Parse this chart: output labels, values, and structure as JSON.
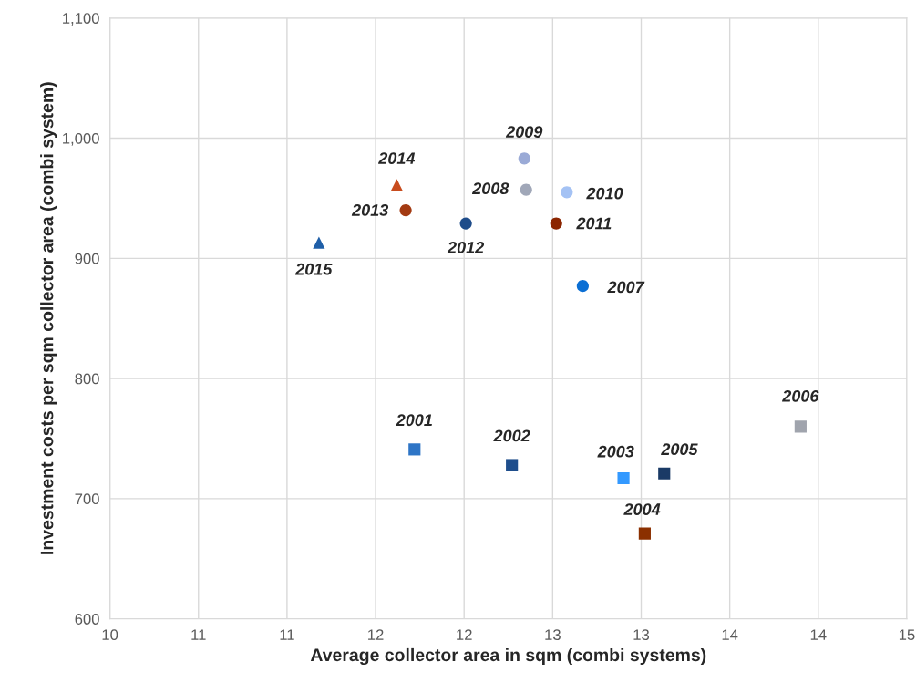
{
  "chart_data": {
    "type": "scatter",
    "xlabel": "Average collector area in sqm (combi systems)",
    "ylabel": "Investment costs per sqm collector area (combi system)",
    "xlim": [
      10,
      14.5
    ],
    "xticks": [
      10,
      {
        "value": 10.5,
        "label": "11"
      },
      11,
      {
        "value": 11.5,
        "label": "12"
      },
      12,
      {
        "value": 12.5,
        "label": "13"
      },
      13,
      {
        "value": 13.5,
        "label": "14"
      },
      14,
      {
        "value": 14.5,
        "label": "15"
      }
    ],
    "ylim": [
      600,
      1100
    ],
    "yticks": [
      600,
      700,
      800,
      900,
      {
        "value": 1000,
        "label": "1,000"
      },
      {
        "value": 1100,
        "label": "1,100"
      }
    ],
    "grid": true,
    "series": [
      {
        "name": "2001",
        "color": "#2e75c6",
        "marker": "square",
        "x": [
          11.72
        ],
        "values": [
          741
        ]
      },
      {
        "name": "2002",
        "color": "#1f4e8c",
        "marker": "square",
        "x": [
          12.27
        ],
        "values": [
          728
        ]
      },
      {
        "name": "2003",
        "color": "#3399ff",
        "marker": "square",
        "x": [
          12.9
        ],
        "values": [
          717
        ]
      },
      {
        "name": "2004",
        "color": "#8b3000",
        "marker": "square",
        "x": [
          13.02
        ],
        "values": [
          671
        ]
      },
      {
        "name": "2005",
        "color": "#1a3a66",
        "marker": "square",
        "x": [
          13.13
        ],
        "values": [
          721
        ]
      },
      {
        "name": "2006",
        "color": "#a0a4ad",
        "marker": "square",
        "x": [
          13.9
        ],
        "values": [
          760
        ]
      },
      {
        "name": "2007",
        "color": "#0b6fd4",
        "marker": "circle",
        "x": [
          12.67
        ],
        "values": [
          877
        ]
      },
      {
        "name": "2008",
        "color": "#a0a7b8",
        "marker": "circle",
        "x": [
          12.35
        ],
        "values": [
          957
        ]
      },
      {
        "name": "2009",
        "color": "#9aaad6",
        "marker": "circle",
        "x": [
          12.34
        ],
        "values": [
          983
        ]
      },
      {
        "name": "2010",
        "color": "#a4c2f4",
        "marker": "circle",
        "x": [
          12.58
        ],
        "values": [
          955
        ]
      },
      {
        "name": "2011",
        "color": "#8b2500",
        "marker": "circle",
        "x": [
          12.52
        ],
        "values": [
          929
        ]
      },
      {
        "name": "2012",
        "color": "#1e4c8a",
        "marker": "circle",
        "x": [
          12.01
        ],
        "values": [
          929
        ]
      },
      {
        "name": "2013",
        "color": "#a33a12",
        "marker": "circle",
        "x": [
          11.67
        ],
        "values": [
          940
        ]
      },
      {
        "name": "2014",
        "color": "#c84c1e",
        "marker": "triangle",
        "x": [
          11.62
        ],
        "values": [
          961
        ]
      },
      {
        "name": "2015",
        "color": "#1f5fa8",
        "marker": "triangle",
        "x": [
          11.18
        ],
        "values": [
          913
        ]
      }
    ]
  }
}
